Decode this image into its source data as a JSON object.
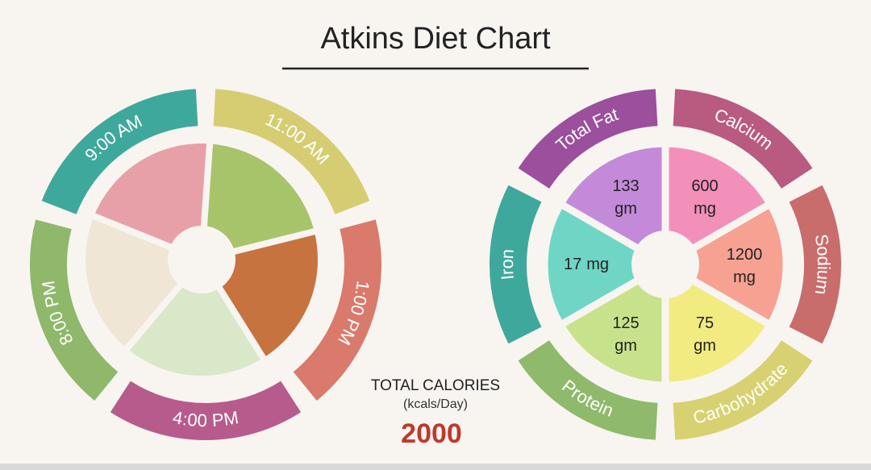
{
  "header": {
    "title": "Atkins Diet Chart"
  },
  "meals": {
    "times": [
      "9:00 AM",
      "11:00 AM",
      "1:00 PM",
      "4:00 PM",
      "8:00 PM"
    ]
  },
  "calories": {
    "label": "TOTAL CALORIES",
    "unit": "(kcals/Day)",
    "value": "2000"
  },
  "nutrients": [
    {
      "name": "Total Fat",
      "amount": "133",
      "unit": "gm"
    },
    {
      "name": "Calcium",
      "amount": "600",
      "unit": "mg"
    },
    {
      "name": "Sodium",
      "amount": "1200",
      "unit": "mg"
    },
    {
      "name": "Carbohydrate",
      "amount": "75",
      "unit": "gm"
    },
    {
      "name": "Protein",
      "amount": "125",
      "unit": "gm"
    },
    {
      "name": "Iron",
      "amount": "17",
      "unit": "mg"
    }
  ]
}
